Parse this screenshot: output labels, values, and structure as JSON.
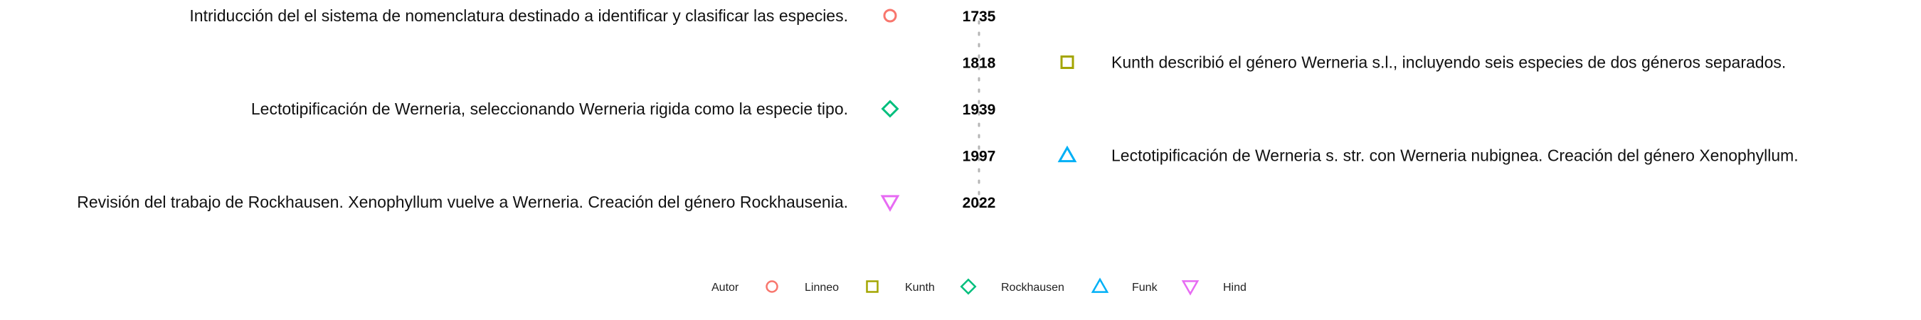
{
  "chart_data": {
    "type": "timeline",
    "legend": {
      "title": "Autor",
      "placement": "bottom"
    },
    "authors": [
      {
        "name": "Linneo",
        "shape": "circle",
        "color": "#F8766D"
      },
      {
        "name": "Kunth",
        "shape": "square",
        "color": "#A3A500"
      },
      {
        "name": "Rockhausen",
        "shape": "diamond",
        "color": "#00BF7D"
      },
      {
        "name": "Funk",
        "shape": "triangle-up",
        "color": "#00B0F6"
      },
      {
        "name": "Hind",
        "shape": "triangle-down",
        "color": "#E76BF3"
      }
    ],
    "events": [
      {
        "year": "1735",
        "author": "Linneo",
        "side": "left",
        "text": "Intriducción del el sistema de nomenclatura destinado a identificar y clasificar las especies."
      },
      {
        "year": "1818",
        "author": "Kunth",
        "side": "right",
        "text": "Kunth describió el género Werneria s.l., incluyendo seis especies de dos géneros separados."
      },
      {
        "year": "1939",
        "author": "Rockhausen",
        "side": "left",
        "text": "Lectotipificación de Werneria, seleccionando Werneria rigida como la especie tipo."
      },
      {
        "year": "1997",
        "author": "Funk",
        "side": "right",
        "text": "Lectotipificación de Werneria s. str. con Werneria nubignea. Creación del género Xenophyllum."
      },
      {
        "year": "2022",
        "author": "Hind",
        "side": "left",
        "text": "Revisión del trabajo de Rockhausen. Xenophyllum vuelve a Werneria. Creación del género Rockhausenia."
      }
    ]
  }
}
